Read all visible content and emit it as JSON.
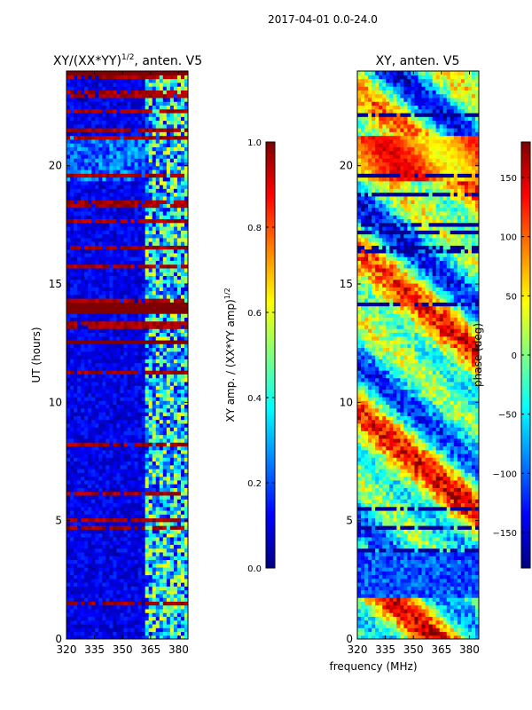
{
  "suptitle": "2017-04-01 0.0-24.0",
  "xlabel_common": "frequency (MHz)",
  "colors": {
    "jet_stops": [
      "#00007f",
      "#0000ff",
      "#0080ff",
      "#00ffff",
      "#80ff80",
      "#ffff00",
      "#ff8000",
      "#ff0000",
      "#7f0000"
    ]
  },
  "chart_data": [
    {
      "type": "heatmap",
      "title_main": "XY/(XX*YY)",
      "title_sup": "1/2",
      "title_rest": ", anten. V5",
      "xlabel": "frequency (MHz)",
      "ylabel": "UT (hours)",
      "xlim": [
        320,
        385
      ],
      "ylim": [
        0,
        24
      ],
      "xticks": [
        320,
        335,
        350,
        365,
        380
      ],
      "yticks": [
        0,
        5,
        10,
        15,
        20
      ],
      "colorbar": {
        "label_main": "XY amp. / (XX*YY amp)",
        "label_sup": "1/2",
        "range": [
          0.0,
          1.0
        ],
        "ticks": [
          0.0,
          0.2,
          0.4,
          0.6,
          0.8,
          1.0
        ],
        "tick_labels": [
          "0.0",
          "0.2",
          "0.4",
          "0.6",
          "0.8",
          "1.0"
        ]
      },
      "features": {
        "rfi_band_start_mhz": 362,
        "saturated_hour_ranges": [
          [
            13.8,
            14.3
          ],
          [
            12.5,
            12.7
          ]
        ],
        "high_band_hours": [
          19.3,
          21.3
        ]
      }
    },
    {
      "type": "heatmap",
      "title": "XY, anten. V5",
      "xlim": [
        320,
        385
      ],
      "ylim": [
        0,
        24
      ],
      "xticks": [
        320,
        335,
        350,
        365,
        380
      ],
      "yticks": [
        0,
        5,
        10,
        15,
        20
      ],
      "colorbar": {
        "label": "phase (deg)",
        "range": [
          -180,
          180
        ],
        "ticks": [
          -150,
          -100,
          -50,
          0,
          50,
          100,
          150
        ],
        "tick_labels": [
          "−150",
          "−100",
          "−50",
          "0",
          "50",
          "100",
          "150"
        ]
      }
    }
  ]
}
